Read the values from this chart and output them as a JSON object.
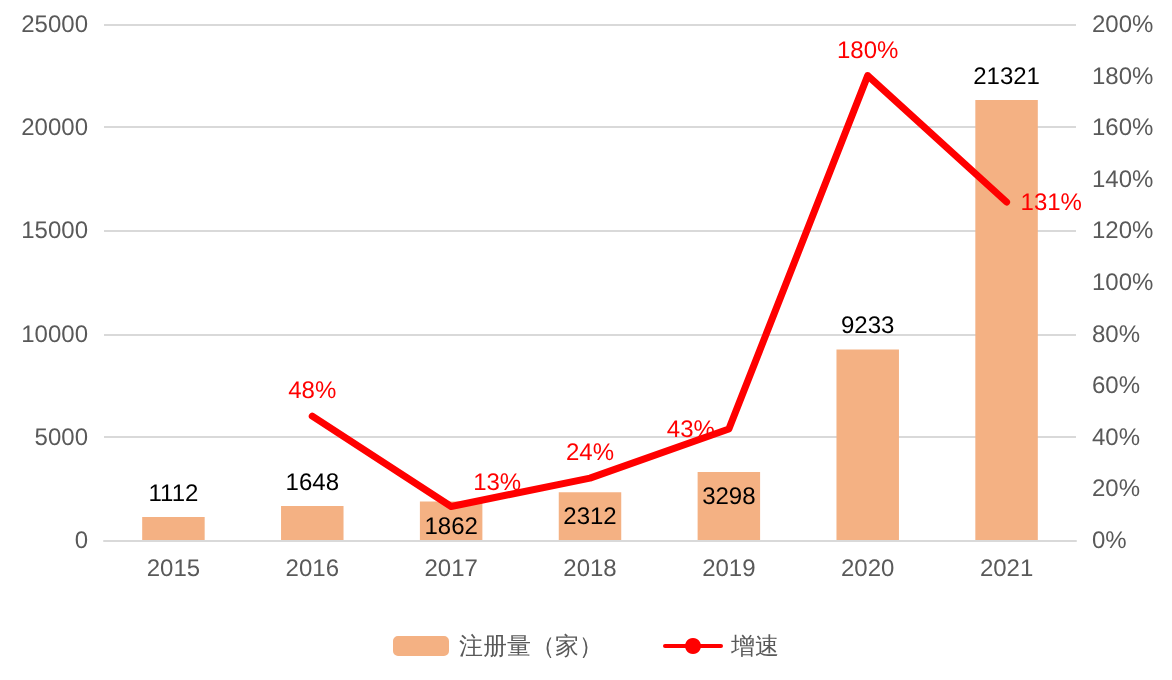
{
  "chart_data": {
    "type": "bar",
    "categories": [
      "2015",
      "2016",
      "2017",
      "2018",
      "2019",
      "2020",
      "2021"
    ],
    "series": [
      {
        "name": "注册量（家）",
        "color": "#f4b183",
        "values": [
          1112,
          1648,
          1862,
          2312,
          3298,
          9233,
          21321
        ],
        "value_labels": [
          "1112",
          "1648",
          "1862",
          "2312",
          "3298",
          "9233",
          "21321"
        ]
      },
      {
        "name": "增速",
        "type": "line",
        "axis": "y2",
        "color": "#ff0000",
        "values": [
          null,
          48,
          13,
          24,
          43,
          180,
          131
        ],
        "value_labels": [
          null,
          "48%",
          "13%",
          "24%",
          "43%",
          "180%",
          "131%"
        ]
      }
    ],
    "ylim": [
      0,
      25000
    ],
    "yticks": [
      0,
      5000,
      10000,
      15000,
      20000,
      25000
    ],
    "y2lim": [
      0,
      200
    ],
    "y2ticks": [
      {
        "value": 0,
        "label": "0%"
      },
      {
        "value": 20,
        "label": "20%"
      },
      {
        "value": 40,
        "label": "40%"
      },
      {
        "value": 60,
        "label": "60%"
      },
      {
        "value": 80,
        "label": "80%"
      },
      {
        "value": 100,
        "label": "100%"
      },
      {
        "value": 120,
        "label": "120%"
      },
      {
        "value": 140,
        "label": "140%"
      },
      {
        "value": 160,
        "label": "160%"
      },
      {
        "value": 180,
        "label": "180%"
      },
      {
        "value": 200,
        "label": "200%"
      }
    ],
    "grid": "y",
    "legend": "bottom",
    "marker": "none",
    "line_style": "solid"
  }
}
